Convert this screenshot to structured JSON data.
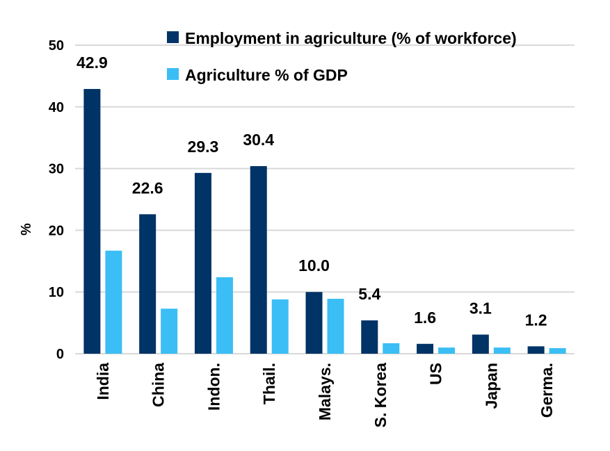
{
  "chart_data": {
    "type": "bar",
    "categories": [
      "India",
      "China",
      "Indon.",
      "Thail.",
      "Malays.",
      "S. Korea",
      "US",
      "Japan",
      "Germa."
    ],
    "series": [
      {
        "name": "Employment in agriculture (% of workforce)",
        "color": "#003366",
        "values": [
          42.9,
          22.6,
          29.3,
          30.4,
          10.0,
          5.4,
          1.6,
          3.1,
          1.2
        ],
        "labels": [
          "42.9",
          "22.6",
          "29.3",
          "30.4",
          "10.0",
          "5.4",
          "1.6",
          "3.1",
          "1.2"
        ]
      },
      {
        "name": "Agriculture % of GDP",
        "color": "#3BBEF5",
        "values": [
          16.7,
          7.3,
          12.4,
          8.8,
          8.9,
          1.7,
          1.0,
          1.0,
          0.9
        ]
      }
    ],
    "ylabel": "%",
    "ylim": [
      0,
      50
    ],
    "yticks": [
      "0",
      "10",
      "20",
      "30",
      "40",
      "50"
    ],
    "grid": true,
    "legend_position": "top-right"
  }
}
